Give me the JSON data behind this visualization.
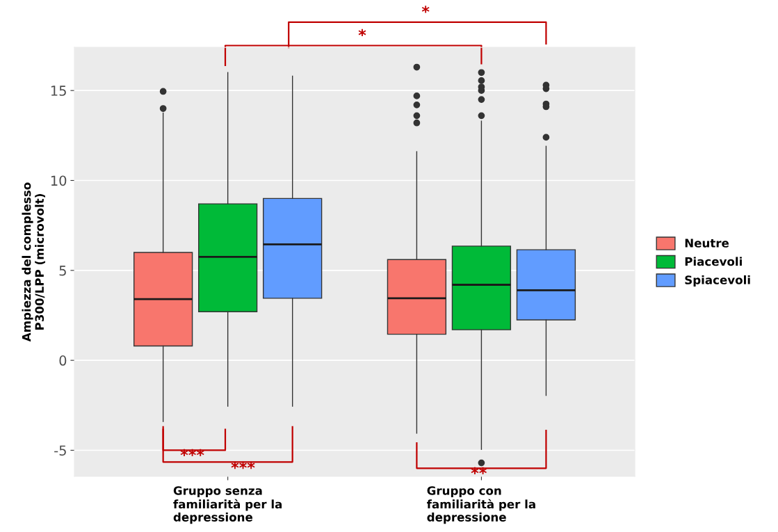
{
  "chart_data": {
    "type": "box",
    "ylabel": "Ampiezza del complesso\nP300/LPP (microvolt)",
    "categories": [
      "Gruppo senza\nfamiliarità per la\ndepressione",
      "Gruppo con\nfamiliarità per la\ndepressione"
    ],
    "ylim": [
      -6.45,
      17.4
    ],
    "yticks": [
      {
        "value": -5,
        "label": "-5"
      },
      0,
      5,
      10,
      15
    ],
    "grid": "y",
    "legend": "right",
    "annotations": [
      "*",
      "*",
      "***",
      "***",
      "**"
    ],
    "series": [
      {
        "name": "Neutre",
        "color": "#f8766d",
        "boxes": [
          {
            "low": -3.4,
            "q1": 0.8,
            "median": 3.4,
            "q3": 6.0,
            "high": 13.75,
            "outliers": [
              14.95,
              14.0
            ]
          },
          {
            "low": -4.05,
            "q1": 1.45,
            "median": 3.45,
            "q3": 5.6,
            "high": 11.6,
            "outliers": [
              16.3,
              14.7,
              14.2,
              13.6,
              13.2
            ]
          }
        ]
      },
      {
        "name": "Piacevoli",
        "color": "#00ba38",
        "boxes": [
          {
            "low": -2.55,
            "q1": 2.7,
            "median": 5.75,
            "q3": 8.7,
            "high": 16.0
          },
          {
            "low": -4.95,
            "q1": 1.7,
            "median": 4.2,
            "q3": 6.35,
            "high": 13.3,
            "outliers": [
              16.0,
              15.55,
              15.2,
              15.0,
              14.5,
              13.6,
              -5.7
            ]
          }
        ]
      },
      {
        "name": "Spiacevoli",
        "color": "#619cff",
        "boxes": [
          {
            "low": -2.55,
            "q1": 3.45,
            "median": 6.45,
            "q3": 9.0,
            "high": 15.8
          },
          {
            "low": -1.95,
            "q1": 2.25,
            "median": 3.9,
            "q3": 6.15,
            "high": 11.9,
            "outliers": [
              15.3,
              15.1,
              14.25,
              14.1,
              12.4
            ]
          }
        ]
      }
    ]
  }
}
